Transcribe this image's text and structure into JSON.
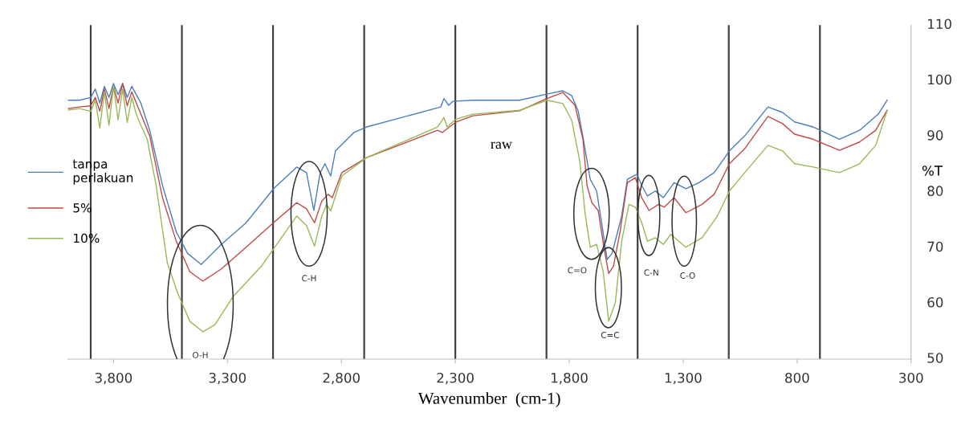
{
  "chart_data": {
    "type": "line",
    "xlabel": "Wavenumber  (cm-1)",
    "ylabel": "%T",
    "xlim": [
      4000,
      300
    ],
    "ylim": [
      50,
      110
    ],
    "xticks": [
      {
        "value": 3800,
        "label": "3,800"
      },
      {
        "value": 3300,
        "label": "3,300"
      },
      {
        "value": 2800,
        "label": "2,800"
      },
      {
        "value": 2300,
        "label": "2,300"
      },
      {
        "value": 1800,
        "label": "1,800"
      },
      {
        "value": 1300,
        "label": "1,300"
      },
      800,
      300
    ],
    "yticks": [
      50,
      60,
      70,
      80,
      90,
      100,
      110
    ],
    "grid": false,
    "legend": "left",
    "marker": "none",
    "line_style": "solid",
    "ref_lines": [
      {
        "axis": "x",
        "value": 3900,
        "color": "#404040"
      },
      {
        "axis": "x",
        "value": 3500,
        "color": "#404040"
      },
      {
        "axis": "x",
        "value": 3100,
        "color": "#404040"
      },
      {
        "axis": "x",
        "value": 2700,
        "color": "#404040"
      },
      {
        "axis": "x",
        "value": 2300,
        "color": "#404040"
      },
      {
        "axis": "x",
        "value": 1900,
        "color": "#404040"
      },
      {
        "axis": "x",
        "value": 1500,
        "color": "#404040"
      },
      {
        "axis": "x",
        "value": 1100,
        "color": "#404040"
      },
      {
        "axis": "x",
        "value": 700,
        "color": "#404040"
      }
    ],
    "annotations": [
      "O-H",
      "C-H",
      "C=O",
      "C=C",
      "C-N",
      "C-O",
      "raw"
    ],
    "series": [
      {
        "name": "tanpa perlakuan",
        "color": "#4a7ebb",
        "x": [
          4000,
          3950,
          3900,
          3880,
          3860,
          3840,
          3820,
          3800,
          3780,
          3760,
          3740,
          3720,
          3700,
          3680,
          3641,
          3585,
          3525,
          3475,
          3415,
          3327,
          3218,
          3098,
          2996,
          2953,
          2921,
          2893,
          2872,
          2847,
          2826,
          2745,
          2689,
          2364,
          2350,
          2329,
          2311,
          2223,
          2018,
          1898,
          1828,
          1789,
          1761,
          1736,
          1708,
          1680,
          1658,
          1634,
          1612,
          1570,
          1545,
          1503,
          1482,
          1457,
          1422,
          1387,
          1340,
          1288,
          1231,
          1164,
          1097,
          1030,
          928,
          864,
          811,
          730,
          614,
          526,
          444,
          405
        ],
        "values": [
          96.5,
          96.5,
          97.0,
          98.5,
          96.0,
          99.0,
          97.0,
          99.5,
          97.5,
          99.5,
          97.0,
          99.0,
          97.5,
          96.0,
          91.1,
          81.2,
          72.9,
          69.0,
          67.0,
          70.6,
          74.5,
          80.6,
          84.5,
          83.5,
          76.7,
          83.5,
          85.1,
          82.9,
          87.4,
          90.7,
          91.7,
          95.3,
          96.8,
          95.6,
          96.3,
          96.5,
          96.5,
          97.6,
          98.2,
          97.3,
          94.6,
          89.0,
          82.3,
          80.2,
          74.5,
          67.9,
          69.0,
          75.7,
          82.3,
          83.2,
          81.2,
          79.3,
          80.2,
          79.0,
          81.7,
          80.6,
          81.7,
          83.5,
          87.4,
          90.1,
          95.3,
          94.3,
          92.6,
          91.7,
          89.5,
          91.1,
          94.0,
          96.5
        ]
      },
      {
        "name": "5%",
        "color": "#be4b48",
        "x": [
          4000,
          3950,
          3900,
          3880,
          3860,
          3840,
          3820,
          3800,
          3780,
          3760,
          3740,
          3720,
          3700,
          3680,
          3641,
          3585,
          3525,
          3465,
          3408,
          3327,
          3218,
          3098,
          2996,
          2953,
          2918,
          2886,
          2858,
          2840,
          2798,
          2689,
          2378,
          2357,
          2297,
          2223,
          2018,
          1898,
          1828,
          1775,
          1740,
          1722,
          1701,
          1673,
          1648,
          1627,
          1606,
          1577,
          1545,
          1510,
          1482,
          1450,
          1408,
          1383,
          1340,
          1288,
          1217,
          1164,
          1097,
          1030,
          928,
          864,
          811,
          730,
          614,
          526,
          455,
          405
        ],
        "values": [
          95.0,
          95.3,
          95.5,
          97.0,
          94.5,
          98.5,
          95.0,
          99.0,
          96.0,
          99.5,
          95.5,
          98.0,
          96.0,
          94.0,
          90.1,
          79.0,
          71.2,
          65.7,
          64.0,
          66.2,
          70.1,
          74.5,
          78.1,
          77.0,
          74.5,
          78.4,
          79.6,
          79.0,
          83.5,
          86.2,
          91.1,
          90.7,
          92.6,
          93.7,
          94.6,
          96.8,
          97.9,
          95.6,
          89.5,
          81.2,
          78.1,
          76.7,
          70.1,
          65.4,
          66.7,
          72.9,
          81.7,
          82.6,
          79.0,
          76.7,
          77.8,
          77.3,
          79.0,
          76.3,
          77.8,
          79.6,
          85.1,
          87.8,
          93.6,
          92.3,
          90.4,
          89.5,
          87.5,
          89.0,
          91.1,
          94.7
        ]
      },
      {
        "name": "10%",
        "color": "#98b954",
        "x": [
          4000,
          3950,
          3900,
          3880,
          3860,
          3840,
          3820,
          3800,
          3780,
          3760,
          3740,
          3720,
          3700,
          3680,
          3652,
          3613,
          3564,
          3518,
          3465,
          3408,
          3355,
          3274,
          3151,
          2996,
          2953,
          2918,
          2886,
          2865,
          2847,
          2798,
          2689,
          2378,
          2350,
          2336,
          2297,
          2223,
          2018,
          1898,
          1828,
          1789,
          1754,
          1729,
          1708,
          1680,
          1651,
          1627,
          1598,
          1570,
          1538,
          1510,
          1482,
          1457,
          1422,
          1387,
          1355,
          1288,
          1217,
          1150,
          1097,
          1030,
          928,
          864,
          811,
          730,
          614,
          526,
          455,
          405
        ],
        "values": [
          94.7,
          95.0,
          94.5,
          96.5,
          91.5,
          98.0,
          92.0,
          99.0,
          93.0,
          98.5,
          92.5,
          97.0,
          94.0,
          92.0,
          89.5,
          81.2,
          67.3,
          61.8,
          56.8,
          54.9,
          56.2,
          61.3,
          66.7,
          75.7,
          74.0,
          70.3,
          75.7,
          77.8,
          76.6,
          82.9,
          86.2,
          91.7,
          93.4,
          91.7,
          93.1,
          94.0,
          94.7,
          96.5,
          95.9,
          92.9,
          85.6,
          75.7,
          70.1,
          70.6,
          65.7,
          56.8,
          60.1,
          71.2,
          77.8,
          77.3,
          74.5,
          71.2,
          71.8,
          70.6,
          72.4,
          70.1,
          71.8,
          75.7,
          80.2,
          83.5,
          88.4,
          87.4,
          85.1,
          84.5,
          83.5,
          85.1,
          88.4,
          94.6
        ]
      }
    ]
  }
}
